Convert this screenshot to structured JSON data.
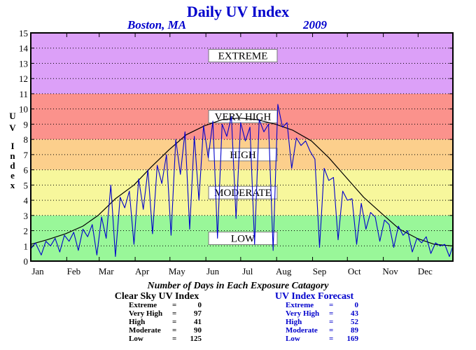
{
  "chart_data": {
    "type": "line",
    "title": "Daily UV Index",
    "location": "Boston, MA",
    "year": "2009",
    "ylabel": "UV Index",
    "ylim": [
      0,
      15
    ],
    "y_ticks": [
      "0",
      "1",
      "2",
      "3",
      "4",
      "5",
      "6",
      "7",
      "8",
      "9",
      "10",
      "11",
      "12",
      "13",
      "14",
      "15"
    ],
    "x_ticks": [
      "Jan",
      "Feb",
      "Mar",
      "Apr",
      "May",
      "Jun",
      "Jul",
      "Aug",
      "Sep",
      "Oct",
      "Nov",
      "Dec"
    ],
    "grid": true,
    "bands": [
      {
        "name": "LOW",
        "from": 0,
        "to": 3,
        "color": "#99f799"
      },
      {
        "name": "MODERATE",
        "from": 3,
        "to": 6,
        "color": "#f7f79c"
      },
      {
        "name": "HIGH",
        "from": 6,
        "to": 8,
        "color": "#fccf8c"
      },
      {
        "name": "VERY HIGH",
        "from": 8,
        "to": 11,
        "color": "#fb928c"
      },
      {
        "name": "EXTREME",
        "from": 11,
        "to": 15,
        "color": "#dca0f8"
      }
    ],
    "series": [
      {
        "name": "Clear Sky UV Index",
        "color": "#000000",
        "day": [
          1,
          15,
          31,
          46,
          59,
          74,
          90,
          105,
          120,
          135,
          151,
          166,
          181,
          196,
          212,
          227,
          243,
          258,
          273,
          288,
          304,
          319,
          334,
          349,
          365
        ],
        "values": [
          1.1,
          1.4,
          1.8,
          2.3,
          3.0,
          4.1,
          5.0,
          6.2,
          7.3,
          8.3,
          8.9,
          9.3,
          9.4,
          9.3,
          9.0,
          8.6,
          7.9,
          6.8,
          5.5,
          4.2,
          3.1,
          2.1,
          1.5,
          1.1,
          1.0
        ]
      },
      {
        "name": "UV Index Forecast",
        "color": "#0000cc",
        "day": [
          1,
          5,
          10,
          14,
          18,
          22,
          26,
          30,
          34,
          38,
          42,
          46,
          50,
          54,
          58,
          62,
          66,
          70,
          74,
          78,
          82,
          86,
          90,
          94,
          98,
          102,
          106,
          110,
          114,
          118,
          122,
          126,
          130,
          134,
          138,
          142,
          146,
          150,
          154,
          158,
          162,
          166,
          170,
          174,
          178,
          182,
          186,
          190,
          194,
          198,
          202,
          206,
          210,
          214,
          218,
          222,
          226,
          230,
          234,
          238,
          242,
          246,
          250,
          254,
          258,
          262,
          266,
          270,
          274,
          278,
          282,
          286,
          290,
          294,
          298,
          302,
          306,
          310,
          314,
          318,
          322,
          326,
          330,
          334,
          338,
          342,
          346,
          350,
          354,
          358,
          362,
          365
        ],
        "values": [
          0.8,
          1.2,
          0.4,
          1.3,
          1.0,
          1.5,
          0.6,
          1.7,
          1.3,
          1.9,
          0.7,
          2.1,
          1.6,
          2.4,
          0.4,
          2.9,
          1.5,
          5.0,
          0.3,
          4.2,
          3.5,
          4.6,
          1.1,
          5.4,
          3.4,
          6.0,
          1.8,
          6.3,
          5.1,
          7.0,
          1.7,
          8.0,
          5.7,
          8.5,
          2.1,
          8.2,
          4.0,
          8.9,
          6.8,
          9.2,
          1.5,
          9.0,
          8.2,
          9.5,
          2.8,
          9.1,
          7.9,
          8.8,
          1.1,
          9.3,
          8.5,
          9.0,
          0.7,
          10.3,
          8.8,
          9.1,
          6.1,
          8.1,
          7.6,
          7.9,
          7.2,
          6.7,
          0.9,
          6.1,
          5.3,
          5.5,
          1.4,
          4.6,
          4.0,
          4.1,
          1.1,
          3.8,
          2.1,
          3.2,
          2.9,
          1.3,
          2.7,
          2.4,
          0.9,
          2.3,
          1.7,
          2.0,
          0.6,
          1.5,
          1.2,
          1.6,
          0.5,
          1.2,
          1.0,
          1.1,
          0.3,
          1.0
        ]
      }
    ]
  },
  "summary": {
    "caption": "Number of Days in Each Exposure Catagory",
    "clear_sky": {
      "heading": "Clear Sky UV Index",
      "rows": [
        {
          "label": "Extreme",
          "eq": "=",
          "value": "0"
        },
        {
          "label": "Very High",
          "eq": "=",
          "value": "97"
        },
        {
          "label": "High",
          "eq": "=",
          "value": "41"
        },
        {
          "label": "Moderate",
          "eq": "=",
          "value": "90"
        },
        {
          "label": "Low",
          "eq": "=",
          "value": "125"
        }
      ]
    },
    "forecast": {
      "heading": "UV Index Forecast",
      "rows": [
        {
          "label": "Extreme",
          "eq": "=",
          "value": "0"
        },
        {
          "label": "Very High",
          "eq": "=",
          "value": "43"
        },
        {
          "label": "High",
          "eq": "=",
          "value": "52"
        },
        {
          "label": "Moderate",
          "eq": "=",
          "value": "89"
        },
        {
          "label": "Low",
          "eq": "=",
          "value": "169"
        }
      ]
    }
  }
}
